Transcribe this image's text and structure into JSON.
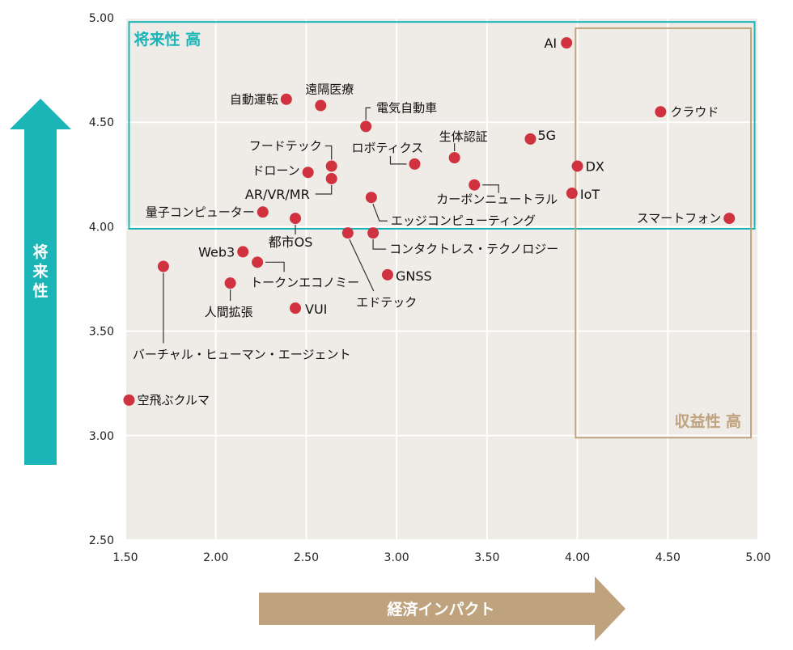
{
  "colors": {
    "plot_bg": "#efebe6",
    "grid": "#ffffff",
    "point": "#d0323f",
    "future_accent": "#1bb5b8",
    "profit_accent": "#bfa37f",
    "leader": "#333333"
  },
  "chart_data": {
    "type": "scatter",
    "title": "",
    "xlabel": "経済インパクト",
    "ylabel": "将来性",
    "xlim": [
      1.5,
      5.0
    ],
    "ylim": [
      2.5,
      5.0
    ],
    "xticks": [
      "1.50",
      "2.00",
      "2.50",
      "3.00",
      "3.50",
      "4.00",
      "4.50",
      "5.00"
    ],
    "yticks": [
      "2.50",
      "3.00",
      "3.50",
      "4.00",
      "4.50",
      "5.00"
    ],
    "grid": true,
    "regions": [
      {
        "label": "将来性 高",
        "x": [
          1.52,
          4.98
        ],
        "y": [
          3.99,
          4.98
        ],
        "color": "#1bb5b8"
      },
      {
        "label": "収益性 高",
        "x": [
          3.99,
          4.96
        ],
        "y": [
          2.99,
          4.95
        ],
        "color": "#bfa37f"
      }
    ],
    "points": [
      {
        "label": "AI",
        "x": 3.94,
        "y": 4.88
      },
      {
        "label": "クラウド",
        "x": 4.46,
        "y": 4.55
      },
      {
        "label": "5G",
        "x": 3.74,
        "y": 4.42
      },
      {
        "label": "DX",
        "x": 4.0,
        "y": 4.29
      },
      {
        "label": "IoT",
        "x": 3.97,
        "y": 4.16
      },
      {
        "label": "スマートフォン",
        "x": 4.84,
        "y": 4.04
      },
      {
        "label": "自動運転",
        "x": 2.39,
        "y": 4.61
      },
      {
        "label": "遠隔医療",
        "x": 2.58,
        "y": 4.58
      },
      {
        "label": "電気自動車",
        "x": 2.83,
        "y": 4.48
      },
      {
        "label": "生体認証",
        "x": 3.32,
        "y": 4.33
      },
      {
        "label": "ロボティクス",
        "x": 3.1,
        "y": 4.3
      },
      {
        "label": "フードテック",
        "x": 2.64,
        "y": 4.29
      },
      {
        "label": "ドローン",
        "x": 2.51,
        "y": 4.26
      },
      {
        "label": "AR/VR/MR",
        "x": 2.64,
        "y": 4.23
      },
      {
        "label": "カーボンニュートラル",
        "x": 3.43,
        "y": 4.2
      },
      {
        "label": "エッジコンピューティング",
        "x": 2.86,
        "y": 4.14
      },
      {
        "label": "量子コンピューター",
        "x": 2.26,
        "y": 4.07
      },
      {
        "label": "都市OS",
        "x": 2.44,
        "y": 4.04
      },
      {
        "label": "エドテック",
        "x": 2.73,
        "y": 3.97
      },
      {
        "label": "コンタクトレス・テクノロジー",
        "x": 2.87,
        "y": 3.97
      },
      {
        "label": "Web3",
        "x": 2.15,
        "y": 3.88
      },
      {
        "label": "トークンエコノミー",
        "x": 2.23,
        "y": 3.83
      },
      {
        "label": "バーチャル・ヒューマン・エージェント",
        "x": 1.71,
        "y": 3.81
      },
      {
        "label": "人間拡張",
        "x": 2.08,
        "y": 3.73
      },
      {
        "label": "GNSS",
        "x": 2.95,
        "y": 3.77
      },
      {
        "label": "VUI",
        "x": 2.44,
        "y": 3.61
      },
      {
        "label": "空飛ぶクルマ",
        "x": 1.52,
        "y": 3.17
      }
    ]
  }
}
